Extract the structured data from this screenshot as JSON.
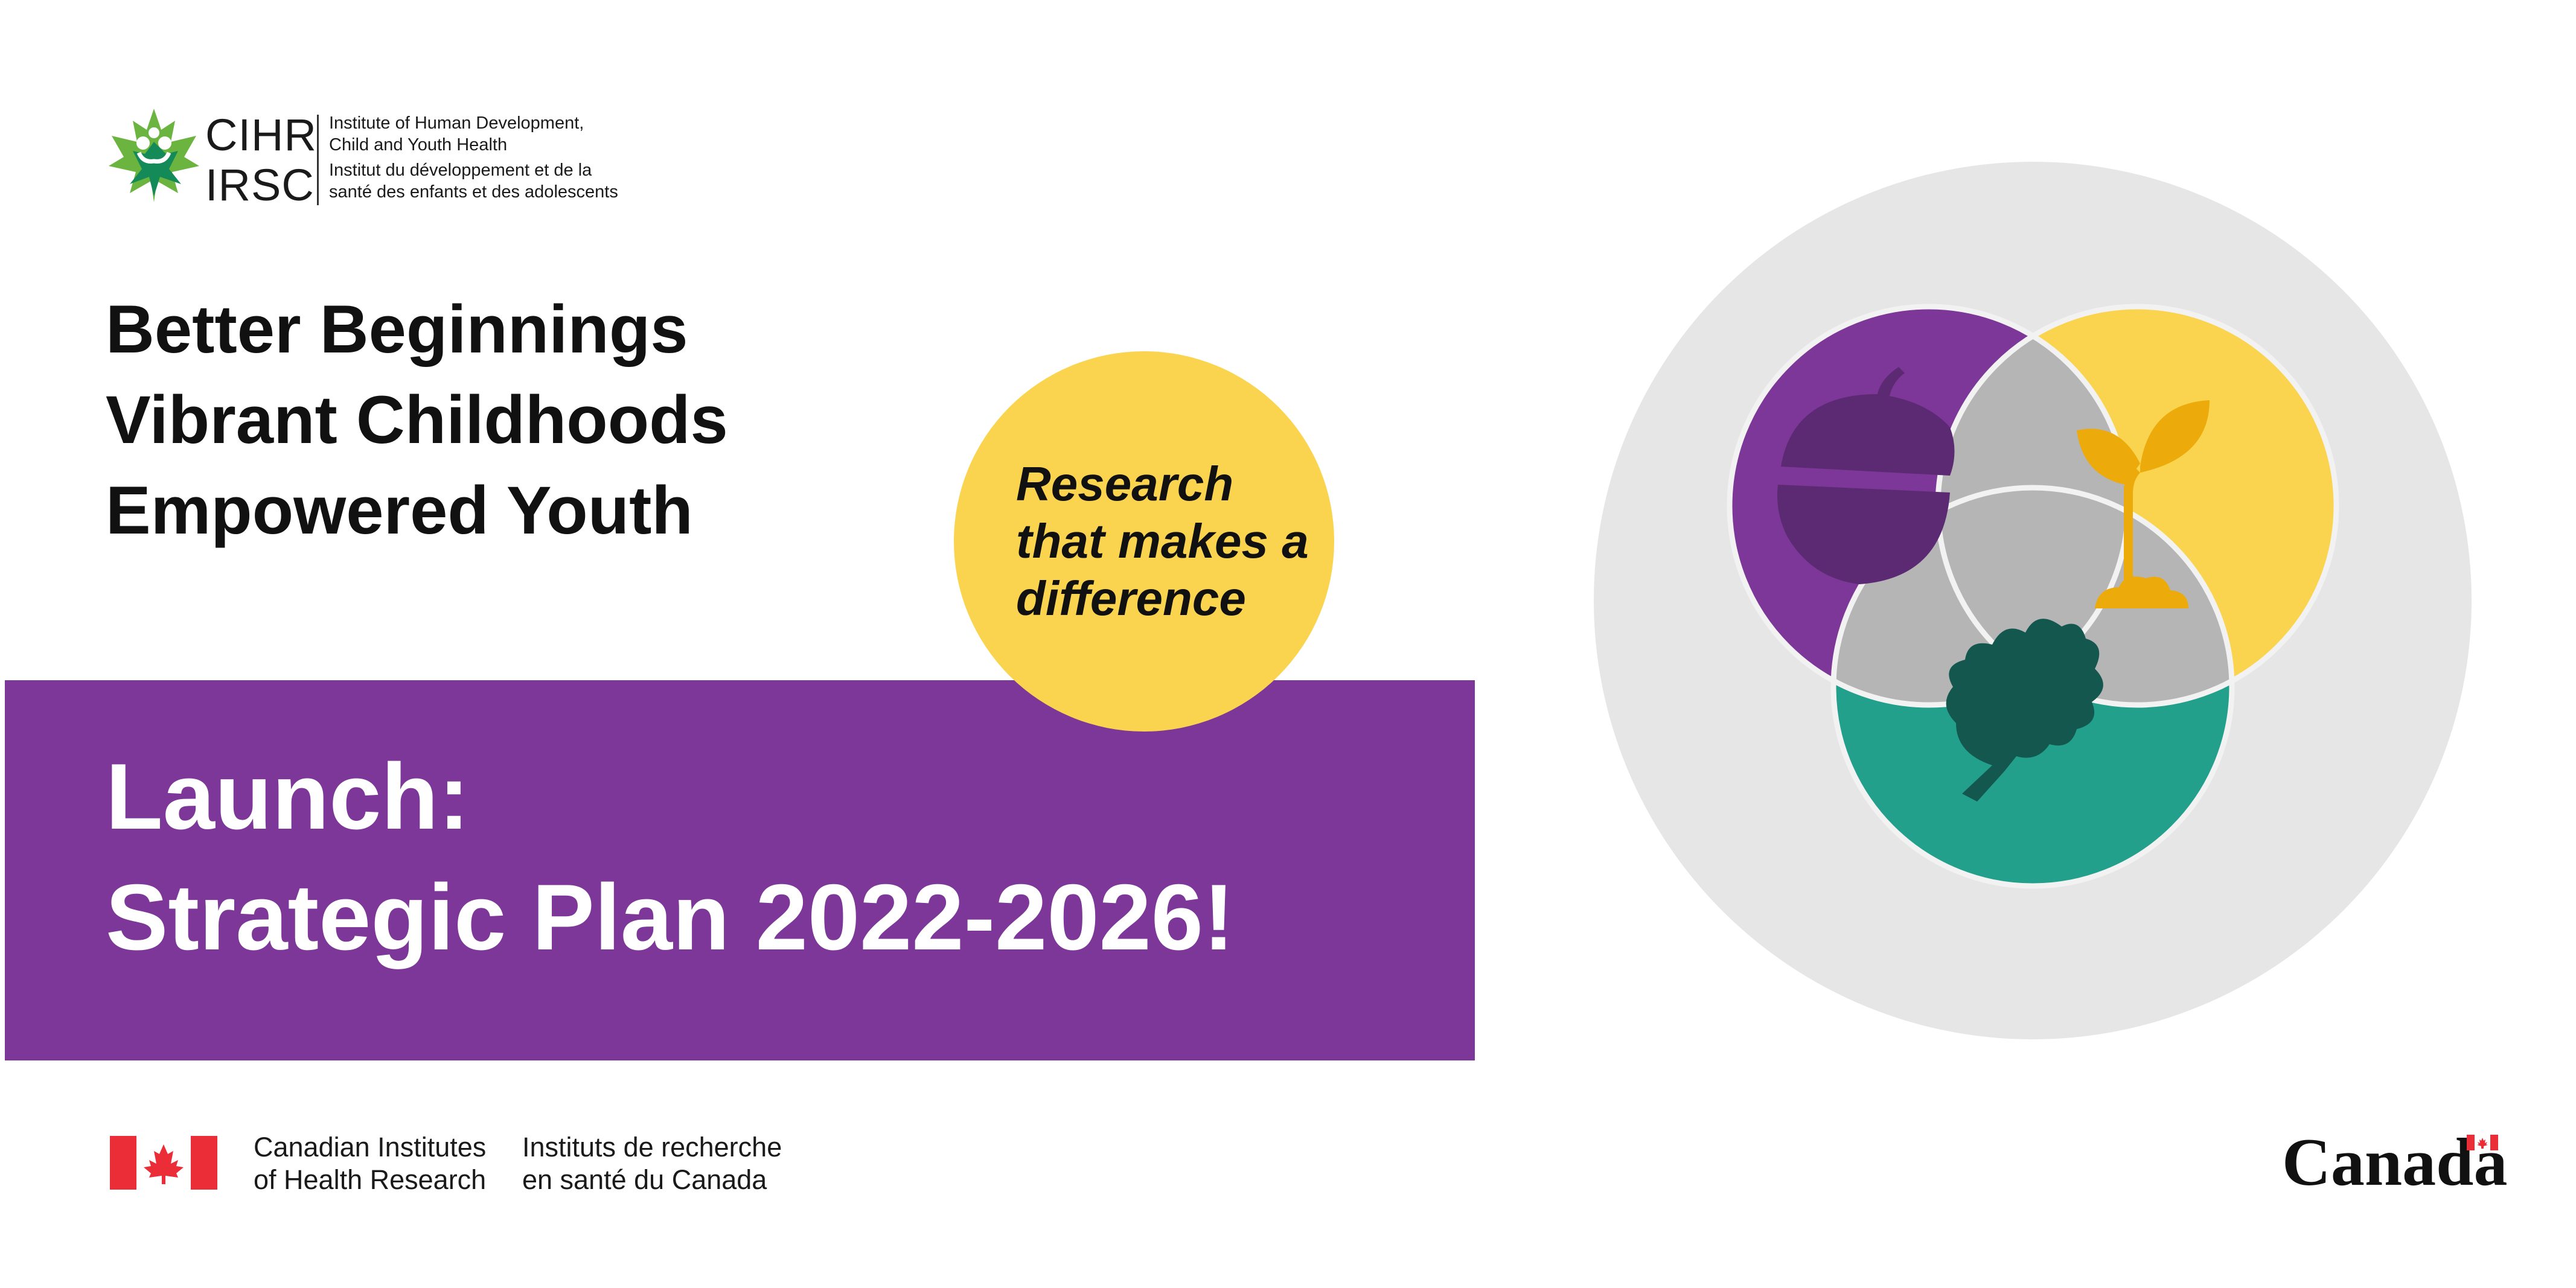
{
  "logo": {
    "acronym_en": "CIHR",
    "acronym_fr": "IRSC",
    "institute_en_line1": "Institute of Human Development,",
    "institute_en_line2": "Child and Youth Health",
    "institute_fr_line1": "Institut du développement et de la",
    "institute_fr_line2": "santé des enfants et des adolescents",
    "icon": "maple-leaf-people-icon"
  },
  "headline": {
    "line1": "Better Beginnings",
    "line2": "Vibrant Childhoods",
    "line3": "Empowered Youth"
  },
  "badge": {
    "line1": "Research",
    "line2": "that makes a",
    "line3": "difference"
  },
  "banner": {
    "line1": "Launch:",
    "line2": "Strategic Plan 2022-2026!"
  },
  "illustration": {
    "circles": [
      {
        "name": "acorn",
        "icon": "acorn-icon"
      },
      {
        "name": "sprout",
        "icon": "sprout-icon"
      },
      {
        "name": "oak-leaf",
        "icon": "oak-leaf-icon"
      }
    ]
  },
  "footer": {
    "en_line1": "Canadian Institutes",
    "en_line2": "of Health Research",
    "fr_line1": "Instituts de recherche",
    "fr_line2": "en santé du Canada",
    "wordmark": "Canada",
    "flag_icon": "canada-flag-icon"
  },
  "colors": {
    "purple": "#7c3798",
    "yellow": "#fbd44f",
    "teal": "#22a08b",
    "grey_circle": "#e6e6e6",
    "overlap_grey": "#b5b5b5",
    "flag_red": "#eb2d37"
  }
}
